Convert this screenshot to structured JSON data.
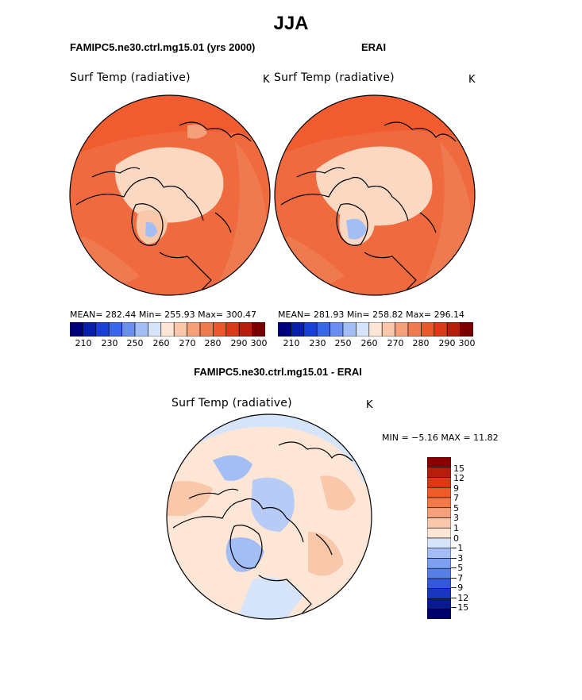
{
  "title": "JJA",
  "top_left": {
    "run_label": "FAMIPC5.ne30.ctrl.mg15.01 (yrs 2000)",
    "variable": "Surf Temp (radiative)",
    "units": "K",
    "stats": "MEAN= 282.44   Min= 255.93   Max= 300.47",
    "colorbar_ticks": [
      "210",
      "230",
      "250",
      "260",
      "270",
      "280",
      "290",
      "300"
    ]
  },
  "top_right": {
    "run_label": "ERAI",
    "variable": "Surf Temp (radiative)",
    "units": "K",
    "stats": "MEAN= 281.93   Min= 258.82   Max= 296.14",
    "colorbar_ticks": [
      "210",
      "230",
      "250",
      "260",
      "270",
      "280",
      "290",
      "300"
    ]
  },
  "diff": {
    "run_label": "FAMIPC5.ne30.ctrl.mg15.01 - ERAI",
    "variable": "Surf Temp (radiative)",
    "units": "K",
    "minmax": "MIN =   −5.16 MAX =   11.82",
    "colorbar_labels": [
      "15",
      "12",
      "9",
      "7",
      "5",
      "3",
      "1",
      "0",
      "−1",
      "−3",
      "−5",
      "−7",
      "−9",
      "−12",
      "−15"
    ]
  },
  "colors": {
    "temp_scale": [
      "#00007a",
      "#0a1fa8",
      "#1a3fd4",
      "#3a66e8",
      "#6b8ff0",
      "#a3bdf5",
      "#d6e4fa",
      "#fde6d6",
      "#f9c7a9",
      "#f5a07a",
      "#f07a4f",
      "#e85a2c",
      "#d63a16",
      "#b41e0a",
      "#7a0000"
    ],
    "diff_scale": [
      "#8b0000",
      "#b51f0a",
      "#d93a14",
      "#ee5a28",
      "#f27a4a",
      "#f5a07a",
      "#f9c7a9",
      "#fde6d6",
      "#d6e4fa",
      "#a3bdf5",
      "#7f9ef0",
      "#567fe8",
      "#3358dc",
      "#1a36c0",
      "#0a1a8f",
      "#00006b"
    ]
  }
}
